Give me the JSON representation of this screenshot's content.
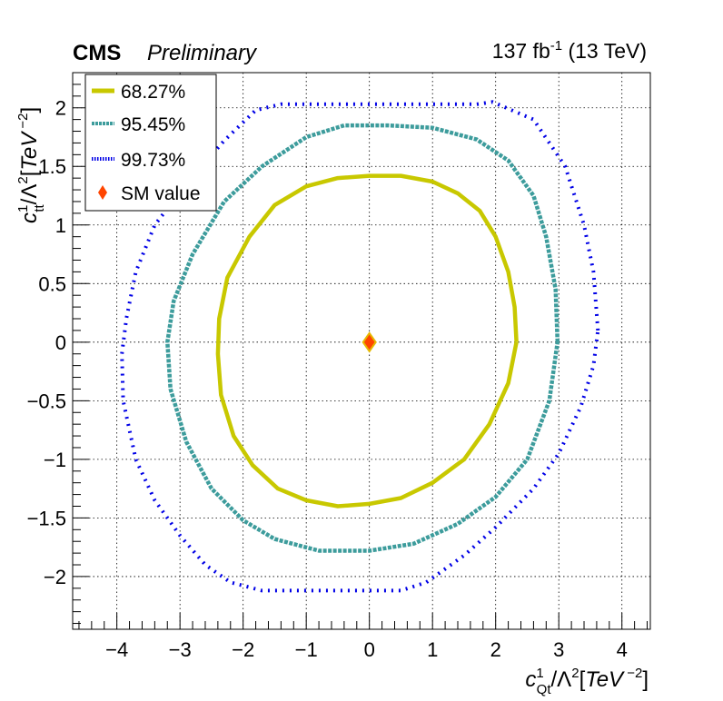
{
  "header": {
    "experiment": "CMS",
    "status": "Preliminary",
    "lumi_prefix": "137 fb",
    "lumi_exp": "-1",
    "lumi_suffix": " (13 TeV)"
  },
  "chart_data": {
    "type": "scatter",
    "title": "",
    "xlabel": "c_Qt^1/Λ^2[TeV^-2]",
    "ylabel": "c_tt^1/Λ^2[TeV^-2]",
    "xlim": [
      -4.7,
      4.45
    ],
    "ylim": [
      -2.45,
      2.3
    ],
    "grid": true,
    "legend_position": "top-left",
    "x_ticks": [
      -4,
      -3,
      -2,
      -1,
      0,
      1,
      2,
      3,
      4
    ],
    "x_tick_labels": [
      "−4",
      "−3",
      "−2",
      "−1",
      "0",
      "1",
      "2",
      "3",
      "4"
    ],
    "y_ticks": [
      -2,
      -1.5,
      -1,
      -0.5,
      0,
      0.5,
      1,
      1.5,
      2
    ],
    "y_tick_labels": [
      "−2",
      "−1.5",
      "−1",
      "−0.5",
      "0",
      "0.5",
      "1",
      "1.5",
      "2"
    ],
    "series": [
      {
        "name": "68.27%",
        "color": "#c8c800",
        "style": "solid",
        "points": [
          [
            2.33,
            0
          ],
          [
            2.3,
            0.3
          ],
          [
            2.2,
            0.6
          ],
          [
            2.0,
            0.9
          ],
          [
            1.75,
            1.12
          ],
          [
            1.4,
            1.27
          ],
          [
            1.0,
            1.37
          ],
          [
            0.5,
            1.42
          ],
          [
            0,
            1.42
          ],
          [
            -0.5,
            1.4
          ],
          [
            -1.0,
            1.33
          ],
          [
            -1.5,
            1.17
          ],
          [
            -1.9,
            0.9
          ],
          [
            -2.25,
            0.55
          ],
          [
            -2.38,
            0.2
          ],
          [
            -2.4,
            -0.1
          ],
          [
            -2.35,
            -0.45
          ],
          [
            -2.15,
            -0.8
          ],
          [
            -1.85,
            -1.05
          ],
          [
            -1.45,
            -1.25
          ],
          [
            -1.0,
            -1.35
          ],
          [
            -0.5,
            -1.4
          ],
          [
            0,
            -1.38
          ],
          [
            0.5,
            -1.33
          ],
          [
            1.0,
            -1.2
          ],
          [
            1.5,
            -1.0
          ],
          [
            1.9,
            -0.7
          ],
          [
            2.2,
            -0.35
          ],
          [
            2.33,
            0
          ]
        ]
      },
      {
        "name": "95.45%",
        "color": "#3d9c9c",
        "style": "dashed",
        "points": [
          [
            2.98,
            0
          ],
          [
            2.95,
            0.45
          ],
          [
            2.8,
            0.9
          ],
          [
            2.6,
            1.25
          ],
          [
            2.2,
            1.55
          ],
          [
            1.7,
            1.73
          ],
          [
            1.0,
            1.83
          ],
          [
            0.3,
            1.85
          ],
          [
            -0.4,
            1.85
          ],
          [
            -1.0,
            1.75
          ],
          [
            -1.7,
            1.5
          ],
          [
            -2.3,
            1.2
          ],
          [
            -2.8,
            0.75
          ],
          [
            -3.1,
            0.35
          ],
          [
            -3.2,
            0
          ],
          [
            -3.15,
            -0.4
          ],
          [
            -2.9,
            -0.85
          ],
          [
            -2.5,
            -1.25
          ],
          [
            -2.0,
            -1.52
          ],
          [
            -1.5,
            -1.68
          ],
          [
            -0.8,
            -1.78
          ],
          [
            0,
            -1.78
          ],
          [
            0.7,
            -1.72
          ],
          [
            1.4,
            -1.55
          ],
          [
            2.0,
            -1.32
          ],
          [
            2.5,
            -1.0
          ],
          [
            2.85,
            -0.5
          ],
          [
            2.98,
            0
          ]
        ]
      },
      {
        "name": "99.73%",
        "color": "#0000e6",
        "style": "dotted",
        "points": [
          [
            3.62,
            0.1
          ],
          [
            3.55,
            0.6
          ],
          [
            3.4,
            1.0
          ],
          [
            3.1,
            1.5
          ],
          [
            2.6,
            1.9
          ],
          [
            1.95,
            2.05
          ],
          [
            1.7,
            2.03
          ],
          [
            0.5,
            2.03
          ],
          [
            -1.4,
            2.03
          ],
          [
            -1.8,
            1.98
          ],
          [
            -2.3,
            1.72
          ],
          [
            -2.9,
            1.35
          ],
          [
            -3.4,
            1.0
          ],
          [
            -3.7,
            0.6
          ],
          [
            -3.85,
            0.2
          ],
          [
            -3.92,
            -0.1
          ],
          [
            -3.9,
            -0.5
          ],
          [
            -3.7,
            -1.0
          ],
          [
            -3.4,
            -1.35
          ],
          [
            -3.0,
            -1.65
          ],
          [
            -2.6,
            -1.9
          ],
          [
            -2.2,
            -2.05
          ],
          [
            -1.7,
            -2.12
          ],
          [
            -1.5,
            -2.12
          ],
          [
            0.5,
            -2.12
          ],
          [
            0.9,
            -2.05
          ],
          [
            1.5,
            -1.82
          ],
          [
            2.0,
            -1.58
          ],
          [
            2.6,
            -1.25
          ],
          [
            3.0,
            -0.95
          ],
          [
            3.35,
            -0.55
          ],
          [
            3.55,
            -0.2
          ],
          [
            3.62,
            0.1
          ]
        ]
      }
    ],
    "markers": [
      {
        "name": "SM value",
        "x": 0,
        "y": 0,
        "color": "#ff4500",
        "outline": "#e6b800",
        "shape": "diamond"
      }
    ]
  }
}
